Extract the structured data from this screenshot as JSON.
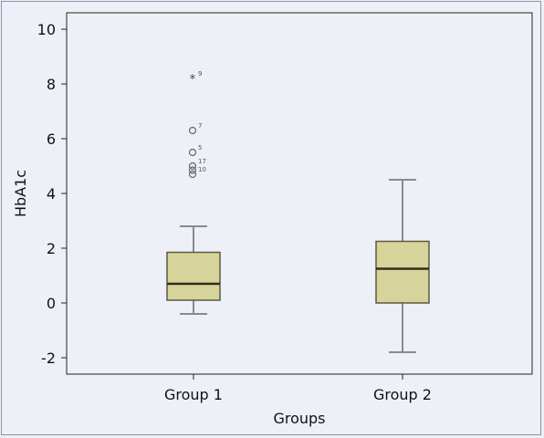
{
  "chart_data": {
    "type": "box",
    "xlabel": "Groups",
    "ylabel": "HbA1c",
    "ylim": [
      -2.6,
      10.6
    ],
    "yticks": [
      -2,
      0,
      2,
      4,
      6,
      8,
      10
    ],
    "grid": false,
    "colors": {
      "box_fill": "#d6d49a",
      "box_stroke": "#5a5a40",
      "plot_bg": "#eef0f7",
      "frame": "#8f93a8"
    },
    "categories": [
      "Group 1",
      "Group 2"
    ],
    "boxes": [
      {
        "category": "Group 1",
        "whisker_low": -0.4,
        "q1": 0.1,
        "median": 0.7,
        "q3": 1.85,
        "whisker_high": 2.8,
        "outliers": [
          {
            "value": 8.2,
            "marker": "star",
            "label": "9"
          },
          {
            "value": 6.3,
            "marker": "circle",
            "label": "7"
          },
          {
            "value": 5.5,
            "marker": "circle",
            "label": "5"
          },
          {
            "value": 5.0,
            "marker": "circle",
            "label": "17"
          },
          {
            "value": 4.85,
            "marker": "circle",
            "label": ""
          },
          {
            "value": 4.7,
            "marker": "circle",
            "label": "10"
          }
        ]
      },
      {
        "category": "Group 2",
        "whisker_low": -1.8,
        "q1": 0.0,
        "median": 1.25,
        "q3": 2.25,
        "whisker_high": 4.5,
        "outliers": []
      }
    ]
  }
}
